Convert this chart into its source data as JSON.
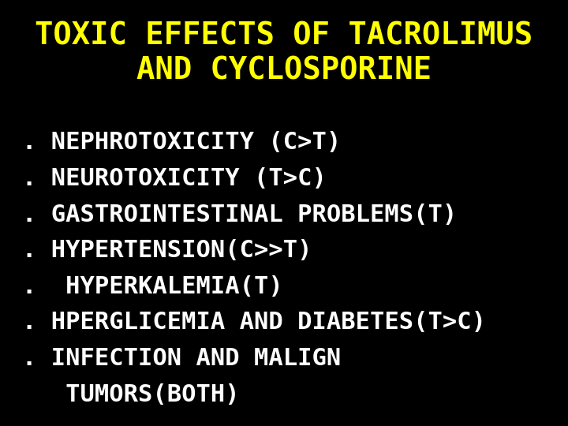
{
  "background_color": "#0000CC",
  "outer_background": "#000000",
  "title_line1": "TOXIC EFFECTS OF TACROLIMUS",
  "title_line2": "AND CYCLOSPORINE",
  "title_color": "#FFFF00",
  "title_fontsize": 28,
  "bullet_color": "#FFFFFF",
  "bullet_fontsize": 22,
  "bullets": [
    ". NEPHROTOXICITY (C>T)",
    ". NEUROTOXICITY (T>C)",
    ". GASTROINTESTINAL PROBLEMS(T)",
    ". HYPERTENSION(C>>T)",
    ".  HYPERKALEMIA(T)",
    ". HPERGLICEMIA AND DIABETES(T>C)",
    ". INFECTION AND MALIGN",
    "   TUMORS(BOTH)"
  ],
  "fig_width": 7.2,
  "fig_height": 5.4,
  "dpi": 100
}
